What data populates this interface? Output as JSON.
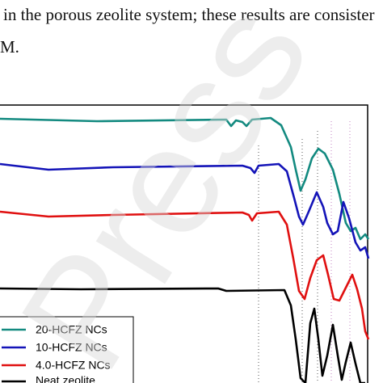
{
  "text": {
    "lines": [
      "in the porous zeolite system; these results are consister",
      "M."
    ]
  },
  "figure": {
    "legend": [
      "20-HCFZ NCs",
      "10-HCFZ NCs",
      "4.0-HCFZ NCs",
      "Neat zeolite"
    ]
  },
  "watermark": "Press"
}
